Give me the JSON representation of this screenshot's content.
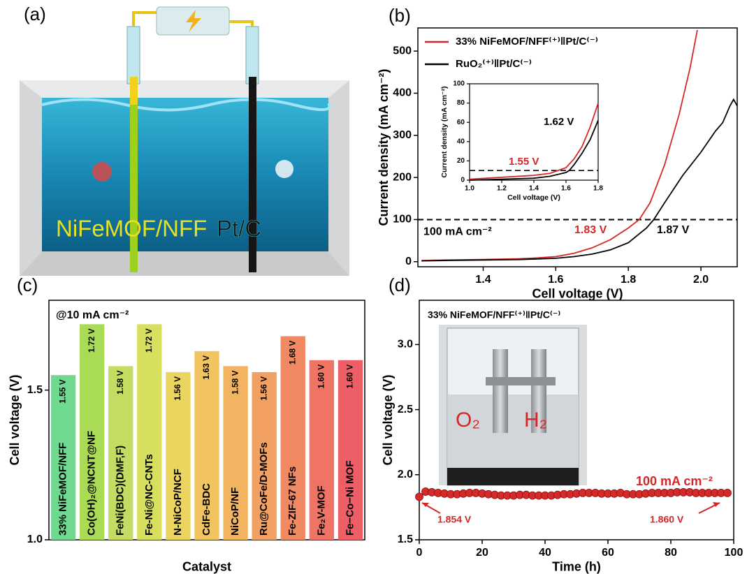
{
  "illustration": {
    "panel_label": "(a)",
    "labels": [
      "NiFeMOF/NFF",
      "Pt/C"
    ]
  },
  "chart_data": [
    {
      "type": "line",
      "panel_label": "(b)",
      "xlabel": "Cell voltage (V)",
      "ylabel": "Current density (mA cm⁻²)",
      "xlim": [
        1.22,
        2.1
      ],
      "ylim": [
        -12,
        555
      ],
      "xticks": [
        1.4,
        1.6,
        1.8,
        {
          "value": 2,
          "label": "2.0"
        }
      ],
      "yticks": [
        0,
        100,
        200,
        300,
        400,
        500
      ],
      "legend": "upper left",
      "series": [
        {
          "name": "33% NiFeMOF/NFF⁽⁺⁾‖Pt/C⁽⁻⁾",
          "color": "#d62728",
          "x": [
            1.23,
            1.3,
            1.4,
            1.5,
            1.55,
            1.6,
            1.65,
            1.7,
            1.75,
            1.8,
            1.83,
            1.86,
            1.9,
            1.94,
            1.97,
            1.99
          ],
          "values": [
            3,
            4,
            5,
            7,
            9,
            12,
            20,
            33,
            52,
            80,
            100,
            140,
            230,
            350,
            460,
            550
          ]
        },
        {
          "name": "RuO₂⁽⁺⁾‖Pt/C⁽⁻⁾",
          "color": "#000000",
          "x": [
            1.23,
            1.3,
            1.4,
            1.5,
            1.6,
            1.65,
            1.7,
            1.75,
            1.8,
            1.85,
            1.87,
            1.9,
            1.95,
            2.0,
            2.04,
            2.06,
            2.08,
            2.09,
            2.1
          ],
          "values": [
            2,
            3,
            4,
            5,
            8,
            12,
            18,
            28,
            45,
            80,
            100,
            140,
            205,
            260,
            310,
            330,
            370,
            385,
            370
          ]
        }
      ],
      "reference_line": 100,
      "reference_label": "100  mA cm⁻²",
      "annotations": [
        {
          "text": "1.83 V",
          "color": "#d62728"
        },
        {
          "text": "1.87 V",
          "color": "#000000"
        }
      ],
      "inset": {
        "type": "line",
        "xlabel": "Cell voltage (V)",
        "ylabel": "Current density (mA cm⁻²)",
        "xlim": [
          1.0,
          1.8
        ],
        "ylim": [
          0,
          100
        ],
        "xticks": [
          {
            "value": 1,
            "label": "1.0"
          },
          1.2,
          1.4,
          1.6,
          1.8
        ],
        "yticks": [
          0,
          20,
          40,
          60,
          80,
          100
        ],
        "series": [
          {
            "color": "#d62728",
            "x": [
              1.0,
              1.2,
              1.4,
              1.5,
              1.55,
              1.6,
              1.65,
              1.7,
              1.75,
              1.8
            ],
            "values": [
              1,
              3,
              5,
              7,
              10,
              13,
              22,
              35,
              55,
              80
            ]
          },
          {
            "color": "#000000",
            "x": [
              1.0,
              1.2,
              1.4,
              1.5,
              1.6,
              1.62,
              1.65,
              1.7,
              1.75,
              1.8
            ],
            "values": [
              0,
              1,
              2,
              4,
              8,
              10,
              16,
              28,
              42,
              62
            ]
          }
        ],
        "reference_line": 10,
        "annotations": [
          {
            "text": "1.55 V",
            "color": "#d62728"
          },
          {
            "text": "1.62 V",
            "color": "#000000"
          }
        ]
      }
    },
    {
      "type": "bar",
      "panel_label": "(c)",
      "xlabel": "Catalyst",
      "ylabel": "Cell voltage (V)",
      "annotation": "@10 mA cm⁻²",
      "ylim": [
        1.0,
        1.8
      ],
      "yticks": [
        {
          "value": 1,
          "label": "1.0"
        },
        1.5
      ],
      "categories": [
        "33% NiFeMOF/NFF",
        "Co(OH)₂@NCNT@NF",
        "FeNi(BDC)(DMF,F)",
        "Fe-Ni@NC-CNTs",
        "N-NiCoP/NCF",
        "CdFe-BDC",
        "NiCoP/NF",
        "Ru@CoFe/D-MOFs",
        "Fe-ZIF-67 NFs",
        "Fe₂V-MOF",
        "Fe−Co−Ni MOF"
      ],
      "values": [
        1.55,
        1.72,
        1.58,
        1.72,
        1.56,
        1.63,
        1.58,
        1.56,
        1.68,
        1.6,
        1.6
      ],
      "value_labels": [
        "1.55 V",
        "1.72 V",
        "1.58 V",
        "1.72 V",
        "1.56 V",
        "1.63 V",
        "1.58 V",
        "1.56 V",
        "1.68 V",
        "1.60 V",
        "1.60 V"
      ],
      "colors": [
        "#6fd98f",
        "#a9db55",
        "#c4dc62",
        "#d8de5e",
        "#ecd55e",
        "#f1c45f",
        "#f3b462",
        "#f3a163",
        "#f18a63",
        "#ef7465",
        "#ee5e66"
      ]
    },
    {
      "type": "scatter",
      "panel_label": "(d)",
      "title": "33% NiFeMOF/NFF⁽⁺⁾‖Pt/C⁽⁻⁾",
      "xlabel": "Time (h)",
      "ylabel": "Cell voltage (V)",
      "xlim": [
        0,
        100
      ],
      "ylim": [
        1.5,
        3.34
      ],
      "xticks": [
        0,
        20,
        40,
        60,
        80,
        100
      ],
      "yticks": [
        1.5,
        {
          "value": 2,
          "label": "2.0"
        },
        2.5,
        {
          "value": 3,
          "label": "3.0"
        }
      ],
      "x": [
        0,
        2,
        4,
        6,
        8,
        10,
        12,
        14,
        16,
        18,
        20,
        22,
        24,
        26,
        28,
        30,
        32,
        34,
        36,
        38,
        40,
        42,
        44,
        46,
        48,
        50,
        52,
        54,
        56,
        58,
        60,
        62,
        64,
        66,
        68,
        70,
        72,
        74,
        76,
        78,
        80,
        82,
        84,
        86,
        88,
        90,
        92,
        94,
        96,
        98
      ],
      "series": [
        {
          "color": "#d42a2a",
          "values": [
            1.83,
            1.87,
            1.865,
            1.86,
            1.855,
            1.85,
            1.85,
            1.855,
            1.86,
            1.86,
            1.855,
            1.85,
            1.845,
            1.84,
            1.84,
            1.84,
            1.845,
            1.845,
            1.84,
            1.84,
            1.84,
            1.84,
            1.845,
            1.85,
            1.85,
            1.855,
            1.86,
            1.86,
            1.86,
            1.855,
            1.855,
            1.855,
            1.86,
            1.85,
            1.85,
            1.85,
            1.855,
            1.86,
            1.86,
            1.86,
            1.86,
            1.865,
            1.865,
            1.865,
            1.86,
            1.86,
            1.86,
            1.86,
            1.86,
            1.86
          ]
        }
      ],
      "annotations": [
        {
          "text": "1.854 V",
          "color": "#d62728"
        },
        {
          "text": "1.860 V",
          "color": "#d62728"
        },
        {
          "text": "100 mA cm⁻²",
          "color": "#d62728"
        }
      ],
      "photo_labels": [
        "O₂",
        "H₂"
      ]
    }
  ]
}
